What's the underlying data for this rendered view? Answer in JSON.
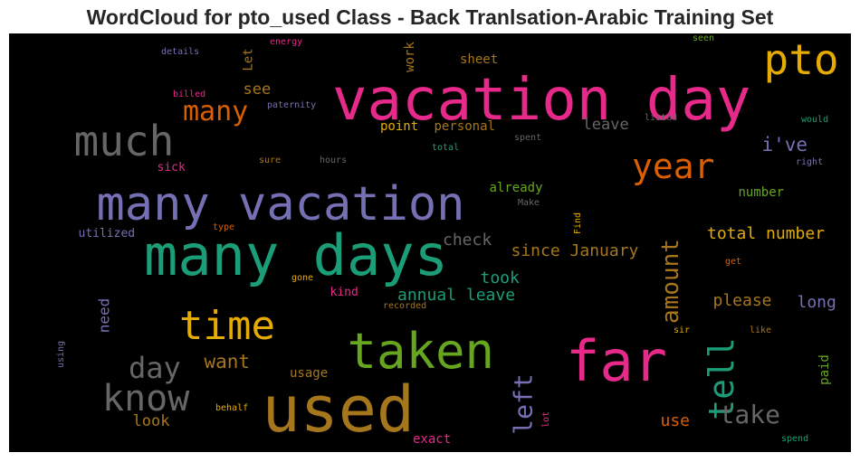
{
  "chart_data": {
    "type": "wordcloud",
    "title": "WordCloud for pto_used Class - Back Tranlsation-Arabic Training Set",
    "background": "#000000",
    "words": [
      {
        "text": "vacation day",
        "color": "#e7298a",
        "weight": 1.0
      },
      {
        "text": "used",
        "color": "#a6761d",
        "weight": 0.95
      },
      {
        "text": "many days",
        "color": "#1b9e77",
        "weight": 0.92
      },
      {
        "text": "many vacation",
        "color": "#7570b3",
        "weight": 0.88
      },
      {
        "text": "far",
        "color": "#e7298a",
        "weight": 0.86
      },
      {
        "text": "taken",
        "color": "#66a61e",
        "weight": 0.83
      },
      {
        "text": "pto",
        "color": "#e6ab02",
        "weight": 0.74
      },
      {
        "text": "much",
        "color": "#666666",
        "weight": 0.72
      },
      {
        "text": "time",
        "color": "#e6ab02",
        "weight": 0.66
      },
      {
        "text": "know",
        "color": "#666666",
        "weight": 0.64
      },
      {
        "text": "year",
        "color": "#d95f02",
        "weight": 0.6
      },
      {
        "text": "tell",
        "color": "#1b9e77",
        "weight": 0.6
      },
      {
        "text": "amount",
        "color": "#a6761d",
        "weight": 0.48
      },
      {
        "text": "day",
        "color": "#666666",
        "weight": 0.48
      },
      {
        "text": "left",
        "color": "#7570b3",
        "weight": 0.46
      },
      {
        "text": "many",
        "color": "#d95f02",
        "weight": 0.44
      },
      {
        "text": "take",
        "color": "#666666",
        "weight": 0.4
      },
      {
        "text": "i've",
        "color": "#7570b3",
        "weight": 0.33
      },
      {
        "text": "want",
        "color": "#a6761d",
        "weight": 0.33
      },
      {
        "text": "check",
        "color": "#666666",
        "weight": 0.3
      },
      {
        "text": "since January",
        "color": "#a6761d",
        "weight": 0.3
      },
      {
        "text": "total number",
        "color": "#e6ab02",
        "weight": 0.3
      },
      {
        "text": "annual leave",
        "color": "#1b9e77",
        "weight": 0.3
      },
      {
        "text": "please",
        "color": "#a6761d",
        "weight": 0.3
      },
      {
        "text": "long",
        "color": "#7570b3",
        "weight": 0.3
      },
      {
        "text": "took",
        "color": "#1b9e77",
        "weight": 0.3
      },
      {
        "text": "use",
        "color": "#d95f02",
        "weight": 0.3
      },
      {
        "text": "look",
        "color": "#a6761d",
        "weight": 0.3
      },
      {
        "text": "leave",
        "color": "#666666",
        "weight": 0.28
      },
      {
        "text": "see",
        "color": "#a6761d",
        "weight": 0.27
      },
      {
        "text": "need",
        "color": "#7570b3",
        "weight": 0.27
      },
      {
        "text": "work",
        "color": "#a6761d",
        "weight": 0.24
      },
      {
        "text": "sheet",
        "color": "#a6761d",
        "weight": 0.24
      },
      {
        "text": "Let",
        "color": "#a6761d",
        "weight": 0.24
      },
      {
        "text": "point",
        "color": "#e6ab02",
        "weight": 0.24
      },
      {
        "text": "personal",
        "color": "#a6761d",
        "weight": 0.24
      },
      {
        "text": "already",
        "color": "#66a61e",
        "weight": 0.24
      },
      {
        "text": "number",
        "color": "#66a61e",
        "weight": 0.24
      },
      {
        "text": "usage",
        "color": "#a6761d",
        "weight": 0.24
      },
      {
        "text": "exact",
        "color": "#e7298a",
        "weight": 0.24
      },
      {
        "text": "paid",
        "color": "#66a61e",
        "weight": 0.24
      },
      {
        "text": "sick",
        "color": "#e7298a",
        "weight": 0.23
      },
      {
        "text": "utilized",
        "color": "#7570b3",
        "weight": 0.22
      },
      {
        "text": "kind",
        "color": "#e7298a",
        "weight": 0.22
      },
      {
        "text": "details",
        "color": "#7570b3",
        "weight": 0.15
      },
      {
        "text": "energy",
        "color": "#e7298a",
        "weight": 0.15
      },
      {
        "text": "billed",
        "color": "#e7298a",
        "weight": 0.15
      },
      {
        "text": "paternity",
        "color": "#7570b3",
        "weight": 0.15
      },
      {
        "text": "sure",
        "color": "#a6761d",
        "weight": 0.15
      },
      {
        "text": "hours",
        "color": "#666666",
        "weight": 0.15
      },
      {
        "text": "total",
        "color": "#1b9e77",
        "weight": 0.15
      },
      {
        "text": "spent",
        "color": "#666666",
        "weight": 0.15
      },
      {
        "text": "listed",
        "color": "#666666",
        "weight": 0.15
      },
      {
        "text": "seen",
        "color": "#66a61e",
        "weight": 0.15
      },
      {
        "text": "would",
        "color": "#1b9e77",
        "weight": 0.15
      },
      {
        "text": "right",
        "color": "#7570b3",
        "weight": 0.15
      },
      {
        "text": "Make",
        "color": "#666666",
        "weight": 0.15
      },
      {
        "text": "Find",
        "color": "#e6ab02",
        "weight": 0.15
      },
      {
        "text": "type",
        "color": "#d95f02",
        "weight": 0.15
      },
      {
        "text": "get",
        "color": "#d95f02",
        "weight": 0.15
      },
      {
        "text": "gone",
        "color": "#e6ab02",
        "weight": 0.15
      },
      {
        "text": "recorded",
        "color": "#a6761d",
        "weight": 0.15
      },
      {
        "text": "sir",
        "color": "#e6ab02",
        "weight": 0.15
      },
      {
        "text": "like",
        "color": "#a6761d",
        "weight": 0.15
      },
      {
        "text": "using",
        "color": "#7570b3",
        "weight": 0.15
      },
      {
        "text": "behalf",
        "color": "#e6ab02",
        "weight": 0.15
      },
      {
        "text": "lot",
        "color": "#e7298a",
        "weight": 0.15
      },
      {
        "text": "spend",
        "color": "#1b9e77",
        "weight": 0.15
      }
    ]
  }
}
